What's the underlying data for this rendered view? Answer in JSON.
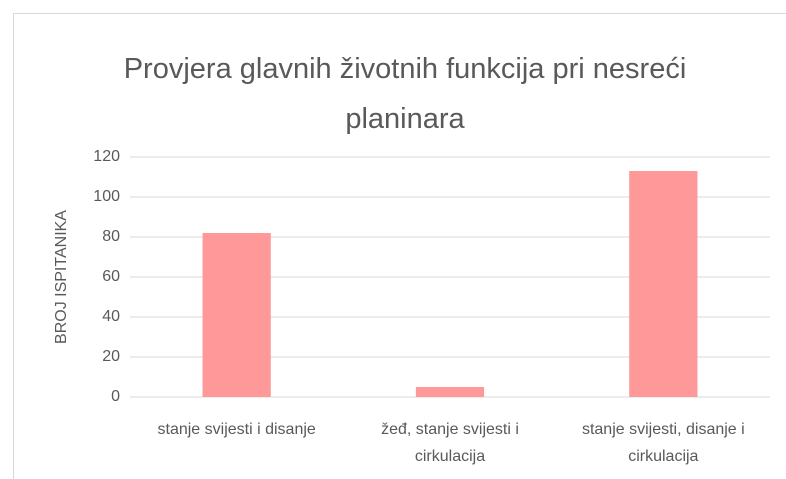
{
  "chart_data": {
    "type": "bar",
    "title": "Provjera glavnih životnih funkcija pri nesreći planinara",
    "ylabel": "BROJ ISPITANIKA",
    "categories": [
      "stanje svijesti i disanje",
      "žeđ, stanje svijesti i cirkulacija",
      "stanje svijesti, disanje i cirkulacija"
    ],
    "values": [
      82,
      5,
      113
    ],
    "color": "#ff9999",
    "ylim": [
      0,
      120
    ],
    "yticks": [
      0,
      20,
      40,
      60,
      80,
      100,
      120
    ],
    "grid": true
  }
}
